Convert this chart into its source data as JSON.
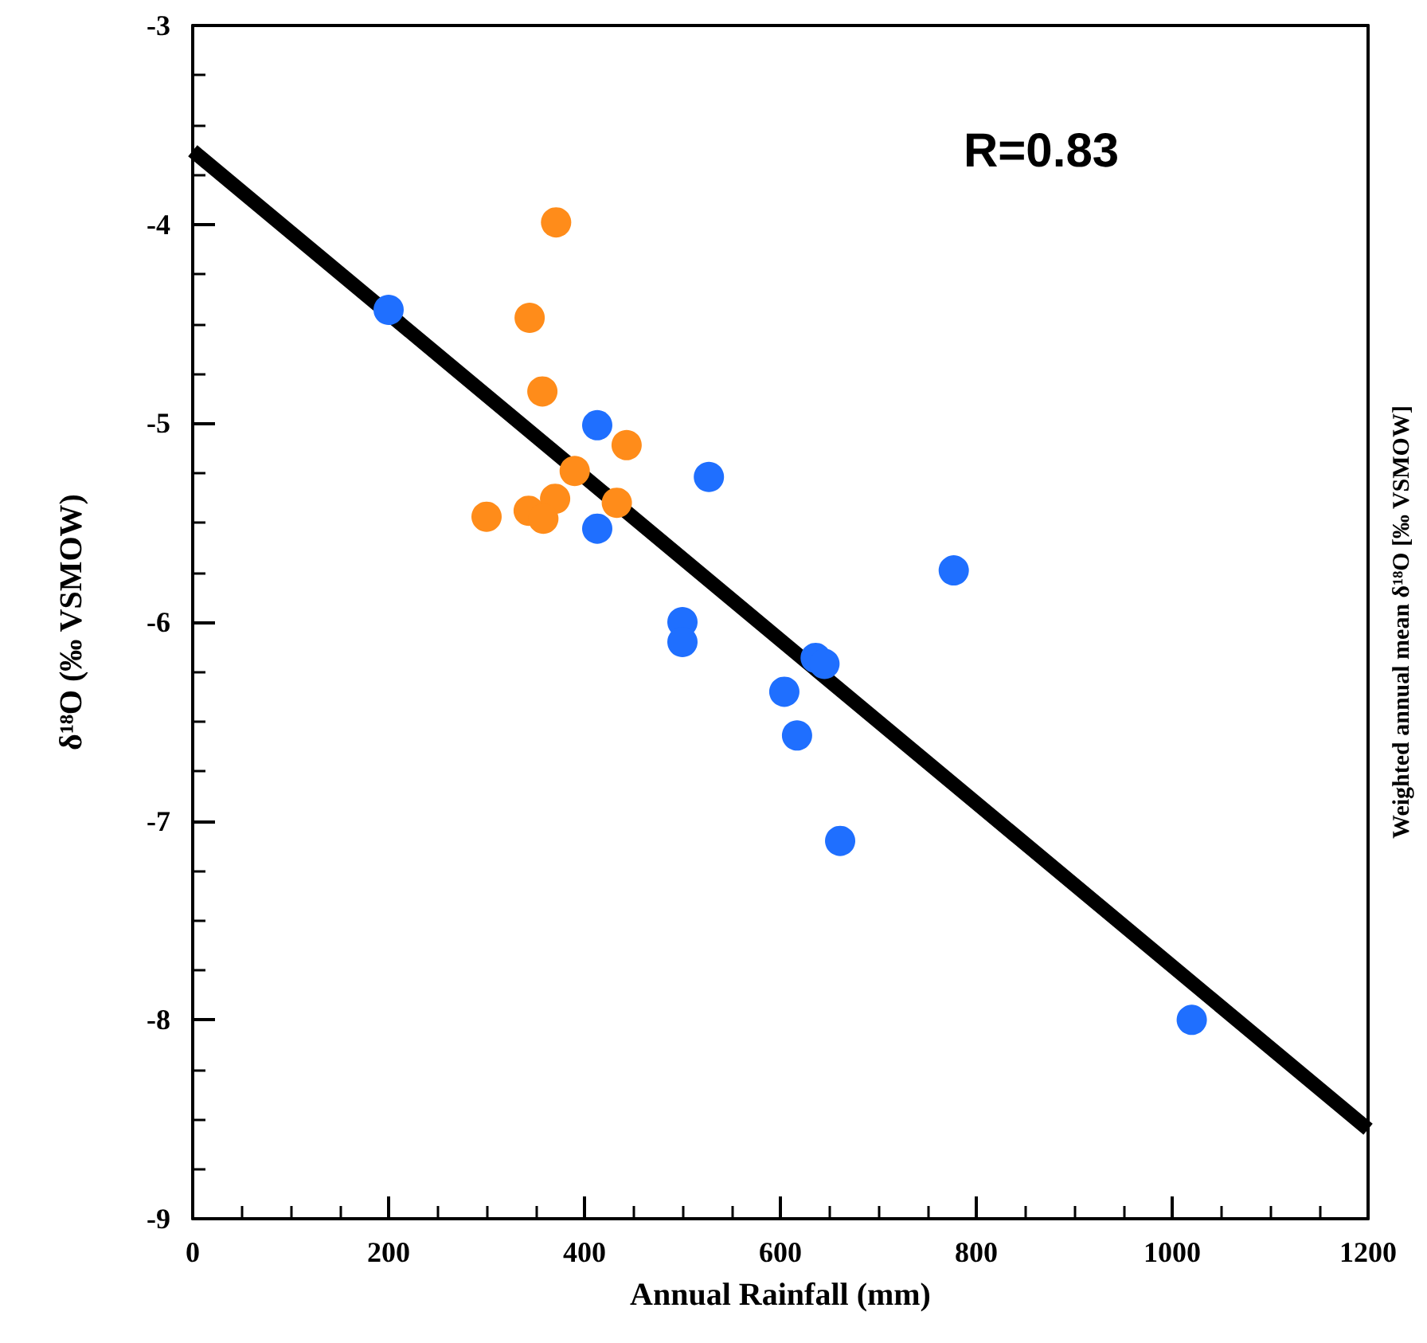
{
  "chart_data": {
    "type": "scatter",
    "xlabel": "Annual Rainfall (mm)",
    "ylabel": "δ¹⁸O (‰ VSMOW)",
    "y2label": "Weighted annual mean δ¹⁸O [‰ VSMOW]",
    "annotations": [
      "R=0.83"
    ],
    "xlim": [
      0,
      1200
    ],
    "xticks": [
      0,
      200,
      400,
      600,
      800,
      1000,
      1200
    ],
    "ylim": [
      -9,
      -3
    ],
    "yticks": [
      -9,
      -8,
      -7,
      -6,
      -5,
      -4,
      -3
    ],
    "grid": false,
    "marker": "circle",
    "series": [
      {
        "color": "#1f6fff",
        "x": [
          200,
          413,
          527,
          413,
          777,
          500,
          500,
          636,
          645,
          604,
          617,
          661,
          1020
        ],
        "values": [
          -4.43,
          -5.01,
          -5.27,
          -5.53,
          -5.74,
          -6.0,
          -6.1,
          -6.18,
          -6.21,
          -6.35,
          -6.57,
          -7.1,
          -8.0
        ]
      },
      {
        "color": "#ff8c1a",
        "x": [
          371,
          344,
          357,
          443,
          390,
          433,
          370,
          343,
          358,
          300
        ],
        "values": [
          -3.99,
          -4.47,
          -4.84,
          -5.11,
          -5.24,
          -5.4,
          -5.38,
          -5.44,
          -5.48,
          -5.47
        ]
      },
      {
        "type": "line",
        "color": "#000000",
        "marker": "none",
        "x": [
          0,
          1200
        ],
        "values": [
          -3.63,
          -8.55
        ]
      }
    ]
  }
}
